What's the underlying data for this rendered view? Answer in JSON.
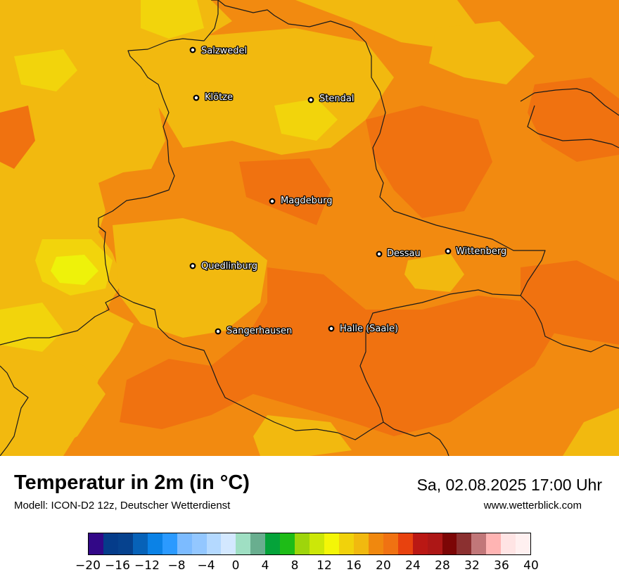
{
  "title": "Temperatur in 2m (in °C)",
  "subtitle": "Modell: ICON-D2 12z, Deutscher Wetterdienst",
  "datetime": "Sa, 02.08.2025 17:00 Uhr",
  "website": "www.wetterblick.com",
  "cities": [
    {
      "name": "Salzwedel"
    },
    {
      "name": "Klötze"
    },
    {
      "name": "Stendal"
    },
    {
      "name": "Magdeburg"
    },
    {
      "name": "Dessau"
    },
    {
      "name": "Wittenberg"
    },
    {
      "name": "Quedlinburg"
    },
    {
      "name": "Sangerhausen"
    },
    {
      "name": "Halle (Saale)"
    }
  ],
  "legend": {
    "min": -20,
    "max": 40,
    "step": 2,
    "colors": [
      "#320887",
      "#053c8a",
      "#06428e",
      "#0762b8",
      "#0b82e6",
      "#2b9aff",
      "#7cbbff",
      "#93c7ff",
      "#b4d9ff",
      "#d3e8ff",
      "#9fdfc3",
      "#69ae8f",
      "#05a33a",
      "#1ebc17",
      "#9ed50b",
      "#cce708",
      "#f4f607",
      "#f1d20b",
      "#f1b90f",
      "#f0880e",
      "#f07212",
      "#e8420e",
      "#ba1814",
      "#ad1716",
      "#7c0606",
      "#8b3030",
      "#c17779",
      "#ffb4b3",
      "#ffe4e4",
      "#fff0f0"
    ],
    "tick_labels": [
      "−20",
      "−16",
      "−12",
      "−8",
      "−4",
      "0",
      "4",
      "8",
      "12",
      "16",
      "20",
      "24",
      "28",
      "32",
      "36",
      "40"
    ]
  },
  "map_colors": {
    "base": "#f28a10",
    "warm": "#f07210",
    "mild": "#f2b90f",
    "cool": "#f2d40c",
    "coolest": "#eef20a",
    "border": "#1a1a1a"
  }
}
